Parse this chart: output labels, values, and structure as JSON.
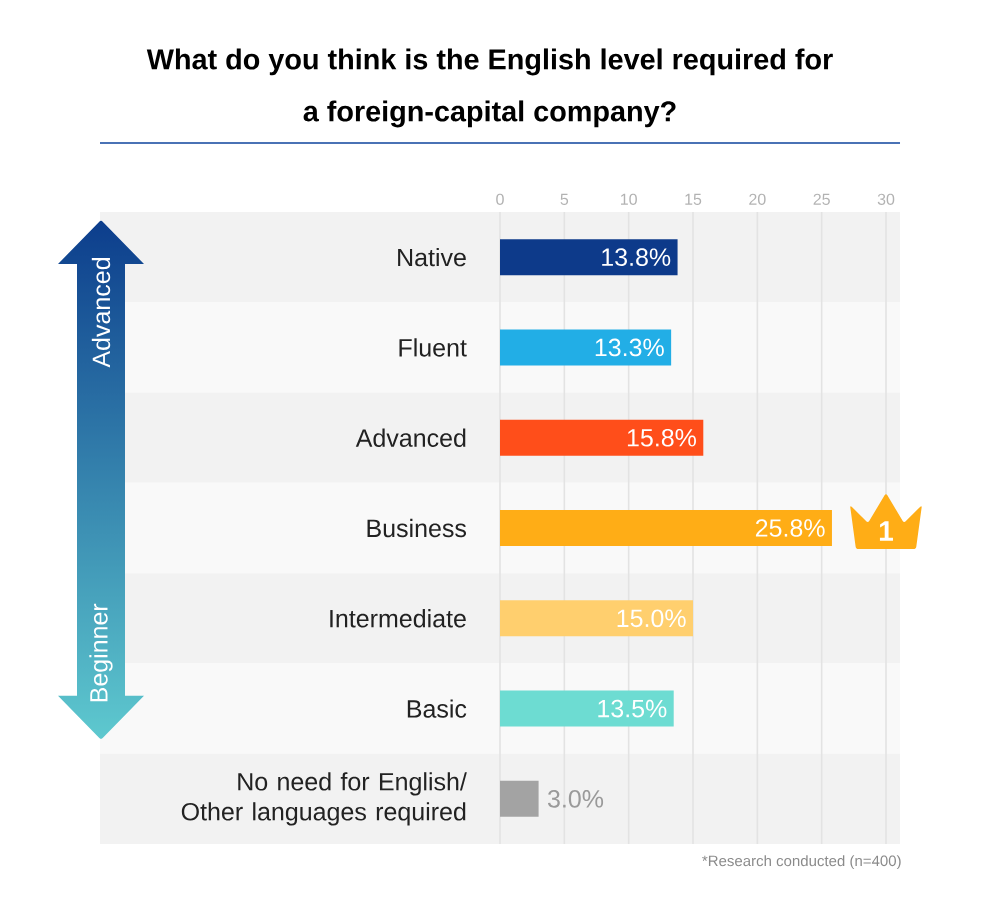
{
  "chart_data": {
    "type": "bar",
    "orientation": "horizontal",
    "title": "What do you think is the English level required for a foreign-capital company?",
    "categories": [
      "Native",
      "Fluent",
      "Advanced",
      "Business",
      "Intermediate",
      "Basic",
      "No need for English/ Other languages required"
    ],
    "values": [
      13.8,
      13.3,
      15.8,
      25.8,
      15.0,
      13.5,
      3.0
    ],
    "colors": [
      "#0d3a8a",
      "#22aee6",
      "#ff4e1a",
      "#ffad16",
      "#ffcf6e",
      "#6ddcd2",
      "#a3a3a3"
    ],
    "value_labels": [
      "13.8%",
      "13.3%",
      "15.8%",
      "25.8%",
      "15.0%",
      "13.5%",
      "3.0%"
    ],
    "xlim": [
      0,
      30
    ],
    "xticks": [
      0,
      5,
      10,
      15,
      20,
      25,
      30
    ],
    "grid": "x",
    "annotations": [
      "Advanced",
      "Beginner",
      "1",
      "*Research conducted (n=400)"
    ]
  }
}
